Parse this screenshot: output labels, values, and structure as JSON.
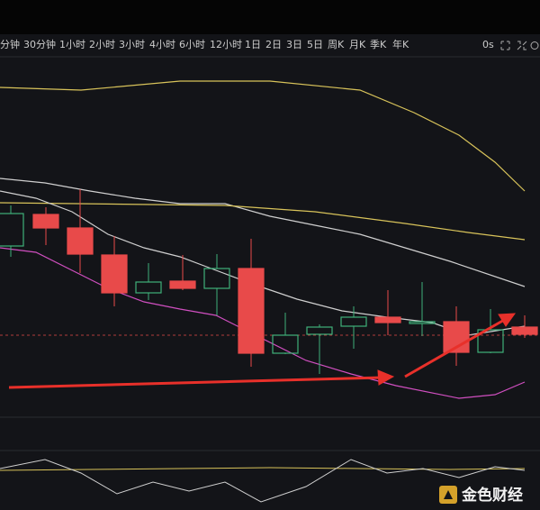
{
  "toolbar": {
    "intervals": [
      "分钟",
      "30分钟",
      "1小时",
      "2小时",
      "3小时",
      "4小时",
      "6小时",
      "12小时",
      "1日",
      "2日",
      "3日",
      "5日",
      "周K",
      "月K",
      "季K",
      "年K"
    ],
    "timer": "0s"
  },
  "watermark": "金色财经"
}
